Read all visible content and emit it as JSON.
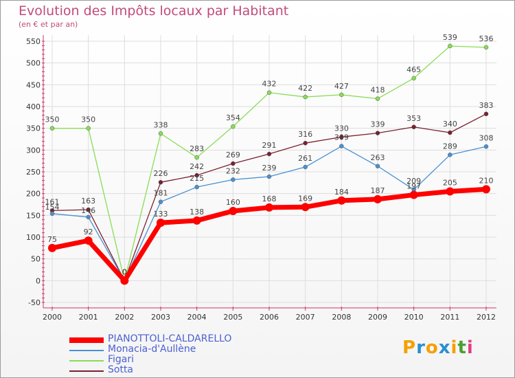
{
  "chart_data": {
    "type": "line",
    "title": "Evolution des Impôts locaux par Habitant",
    "subtitle": "(en € et par an)",
    "xlabel": "",
    "ylabel": "",
    "categories": [
      "2000",
      "2001",
      "2002",
      "2003",
      "2004",
      "2005",
      "2006",
      "2007",
      "2008",
      "2009",
      "2010",
      "2011",
      "2012"
    ],
    "ylim": [
      -50,
      550
    ],
    "yticks": [
      -50,
      0,
      50,
      100,
      150,
      200,
      250,
      300,
      350,
      400,
      450,
      500,
      550
    ],
    "grid": true,
    "legend_position": "bottom-left",
    "series": [
      {
        "name": "PIANOTTOLI-CALDARELLO",
        "color": "#ff0000",
        "values": [
          75,
          92,
          0,
          133,
          138,
          160,
          168,
          169,
          184,
          187,
          197,
          205,
          210
        ]
      },
      {
        "name": "Monacia-d'Aullène",
        "color": "#4a90d0",
        "values": [
          154,
          146,
          0,
          181,
          215,
          232,
          239,
          261,
          309,
          263,
          209,
          289,
          308
        ]
      },
      {
        "name": "Figari",
        "color": "#88dd55",
        "values": [
          350,
          350,
          0,
          338,
          283,
          354,
          432,
          422,
          427,
          418,
          465,
          539,
          536
        ]
      },
      {
        "name": "Sotta",
        "color": "#7a2030",
        "values": [
          161,
          163,
          0,
          226,
          242,
          269,
          291,
          316,
          330,
          339,
          353,
          340,
          383
        ]
      }
    ]
  },
  "brand": {
    "text": "Proxiti",
    "letters": [
      "P",
      "r",
      "o",
      "x",
      "i",
      "t",
      "i"
    ],
    "colors": [
      "#f5a000",
      "#2a8fd0",
      "#f5a000",
      "#2a8fd0",
      "#f5a000",
      "#4aa030",
      "#e04080"
    ]
  }
}
